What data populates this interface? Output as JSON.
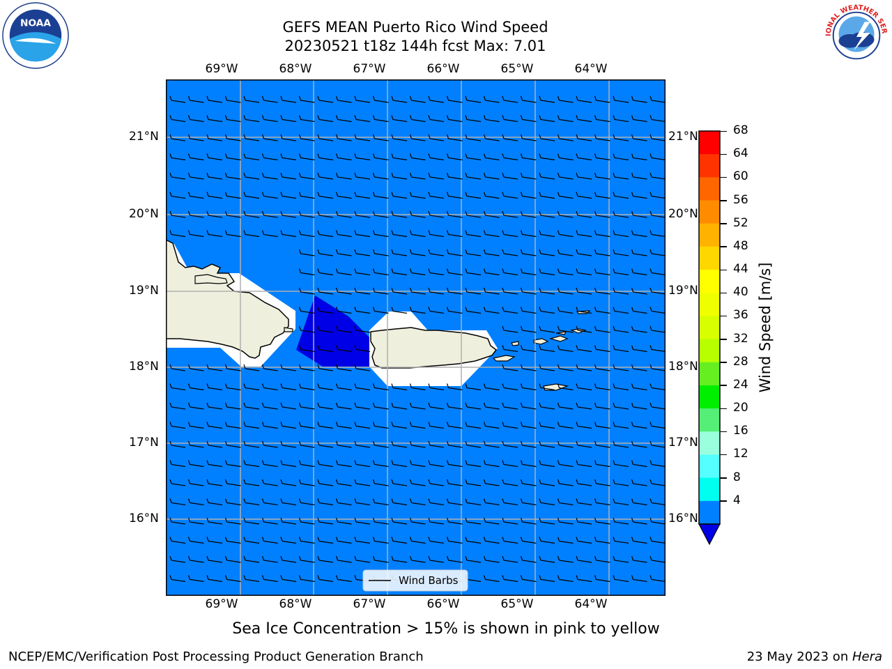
{
  "header": {
    "title_line1": "GEFS MEAN Puerto Rico Wind Speed",
    "title_line2": "20230521 t18z 144h fcst   Max: 7.01"
  },
  "map": {
    "lon_labels": [
      "69°W",
      "68°W",
      "67°W",
      "66°W",
      "65°W",
      "64°W"
    ],
    "lat_labels": [
      "21°N",
      "20°N",
      "19°N",
      "18°N",
      "17°N",
      "16°N"
    ],
    "ocean_color": "#0080ff",
    "land_color": "#efefdd",
    "low_wind_color": "#0000e6",
    "legend_label": "Wind Barbs"
  },
  "colorbar": {
    "label": "Wind Speed [m/s]",
    "ticks": [
      "68",
      "64",
      "60",
      "56",
      "52",
      "48",
      "44",
      "40",
      "36",
      "32",
      "28",
      "24",
      "20",
      "16",
      "12",
      "8",
      "4"
    ],
    "colors": [
      "#ff0000",
      "#ff3300",
      "#ff6600",
      "#ff8c00",
      "#ffb300",
      "#ffd700",
      "#ffff00",
      "#f0ff00",
      "#d8ff00",
      "#b8ff00",
      "#66ee22",
      "#00ee00",
      "#55ee77",
      "#99ffdd",
      "#55ffff",
      "#00ffee",
      "#0080ff"
    ],
    "under_color": "#0000e6"
  },
  "footer": {
    "subtitle": "Sea Ice Concentration > 15% is shown in pink to yellow",
    "left": "NCEP/EMC/Verification Post Processing Product Generation Branch",
    "date": "23 May 2023 on ",
    "machine": "Hera"
  },
  "logos": {
    "noaa_text": "NOAA",
    "nws_text": "NATIONAL WEATHER SERVICE"
  }
}
